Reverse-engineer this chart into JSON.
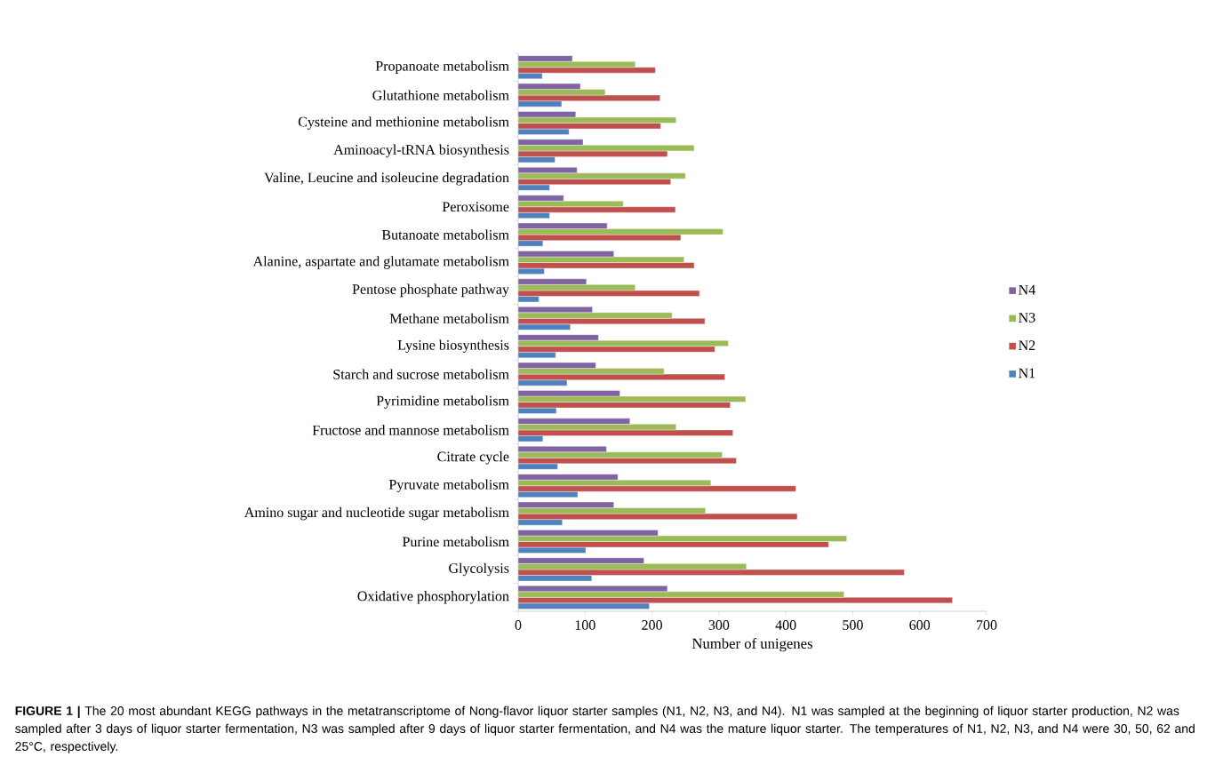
{
  "chart_data": {
    "type": "bar",
    "orientation": "horizontal",
    "xlabel": "Number of unigenes",
    "categories": [
      "Propanoate metabolism",
      "Glutathione metabolism",
      "Cysteine and methionine metabolism",
      "Aminoacyl-tRNA biosynthesis",
      "Valine, Leucine and isoleucine degradation",
      "Peroxisome",
      "Butanoate metabolism",
      "Alanine, aspartate and glutamate metabolism",
      "Pentose phosphate pathway",
      "Methane metabolism",
      "Lysine biosynthesis",
      "Starch and sucrose metabolism",
      "Pyrimidine metabolism",
      "Fructose and mannose metabolism",
      "Citrate cycle",
      "Pyruvate metabolism",
      "Amino sugar and nucleotide sugar metabolism",
      "Purine metabolism",
      "Glycolysis",
      "Oxidative phosphorylation"
    ],
    "series": [
      {
        "name": "N1",
        "color": "#4f81bd",
        "values": [
          36,
          65,
          76,
          55,
          47,
          47,
          37,
          39,
          31,
          78,
          56,
          73,
          57,
          37,
          59,
          89,
          66,
          101,
          110,
          196
        ]
      },
      {
        "name": "N2",
        "color": "#c0504d",
        "values": [
          205,
          212,
          213,
          223,
          228,
          235,
          243,
          263,
          271,
          279,
          294,
          309,
          317,
          321,
          326,
          415,
          417,
          464,
          577,
          649
        ]
      },
      {
        "name": "N3",
        "color": "#9bbb59",
        "values": [
          175,
          130,
          236,
          263,
          250,
          157,
          306,
          248,
          175,
          230,
          314,
          218,
          340,
          236,
          305,
          288,
          280,
          491,
          341,
          487
        ]
      },
      {
        "name": "N4",
        "color": "#8064a2",
        "values": [
          81,
          93,
          86,
          97,
          88,
          68,
          133,
          143,
          102,
          111,
          120,
          116,
          152,
          167,
          132,
          149,
          143,
          209,
          188,
          223
        ]
      }
    ],
    "xlim": [
      0,
      700
    ],
    "xticks": [
      0,
      100,
      200,
      300,
      400,
      500,
      600,
      700
    ],
    "grid": false,
    "legend": "right",
    "annotations": [
      "**FIGURE 1 |** The 20 most abundant KEGG pathways in the metatranscriptome of Nong-flavor liquor starter samples (N1, N2, N3, and N4). N1 was sampled at the beginning of liquor starter production, N2 was sampled after 3 days of liquor starter fermentation, N3 was sampled after 9 days of liquor starter fermentation, and N4 was the mature liquor starter. The temperatures of N1, N2, N3, and N4 were 30, 50, 62 and 25°C, respectively."
    ]
  }
}
